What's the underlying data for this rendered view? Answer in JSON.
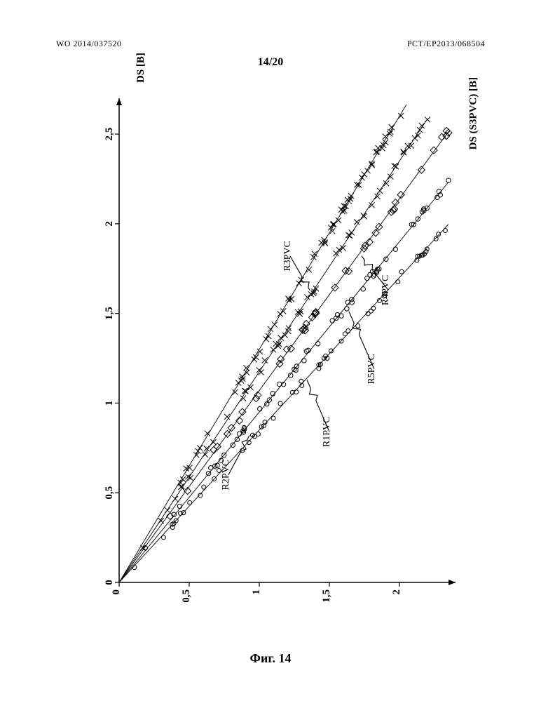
{
  "header": {
    "left": "WO 2014/037520",
    "right": "PCT/EP2013/068504",
    "page_number": "14/20"
  },
  "caption": "Фиг. 14",
  "chart": {
    "type": "scatter",
    "background_color": "#ffffff",
    "axis_color": "#000000",
    "tick_color": "#000000",
    "tick_fontsize": 15,
    "x": {
      "label": "DS (S3PVC) [B]",
      "lim": [
        0,
        2.4
      ],
      "ticks": [
        0,
        0.5,
        1,
        1.5,
        2
      ]
    },
    "y": {
      "label": "DS [B]",
      "lim": [
        0,
        2.7
      ],
      "ticks": [
        0,
        0.5,
        1,
        1.5,
        2,
        2.5
      ]
    },
    "series": [
      {
        "name": "R2PVC",
        "label": "R2PVC",
        "marker": "x",
        "marker_size": 4,
        "line_color": "#000000",
        "label_pos": {
          "x": 0.78,
          "y": 0.6
        },
        "label_anchor": {
          "x": 0.93,
          "y": 0.82
        },
        "slope": 1.3,
        "x_end": 2.05,
        "n_points": 68
      },
      {
        "name": "R3PVC",
        "label": "R3PVC",
        "marker": "x",
        "marker_size": 4,
        "line_color": "#000000",
        "label_pos": {
          "x": 1.22,
          "y": 1.82
        },
        "label_anchor": {
          "x": 1.36,
          "y": 1.63
        },
        "slope": 1.175,
        "x_end": 2.2,
        "n_points": 60
      },
      {
        "name": "R4PVC",
        "label": "R4PVC",
        "marker": "diamond",
        "marker_size": 5,
        "line_color": "#000000",
        "label_pos": {
          "x": 1.92,
          "y": 1.63
        },
        "label_anchor": {
          "x": 1.73,
          "y": 1.82
        },
        "slope": 1.07,
        "x_end": 2.35,
        "n_points": 42
      },
      {
        "name": "R5PVC",
        "label": "R5PVC",
        "marker": "o",
        "marker_size": 3.2,
        "line_color": "#000000",
        "label_pos": {
          "x": 1.82,
          "y": 1.19
        },
        "label_anchor": {
          "x": 1.64,
          "y": 1.51
        },
        "slope": 0.95,
        "x_end": 2.35,
        "n_points": 62
      },
      {
        "name": "R1PVC",
        "label": "R1PVC",
        "marker": "o",
        "marker_size": 3.0,
        "line_color": "#000000",
        "label_pos": {
          "x": 1.5,
          "y": 0.84
        },
        "label_anchor": {
          "x": 1.34,
          "y": 1.13
        },
        "slope": 0.85,
        "x_end": 2.35,
        "n_points": 56
      }
    ]
  }
}
